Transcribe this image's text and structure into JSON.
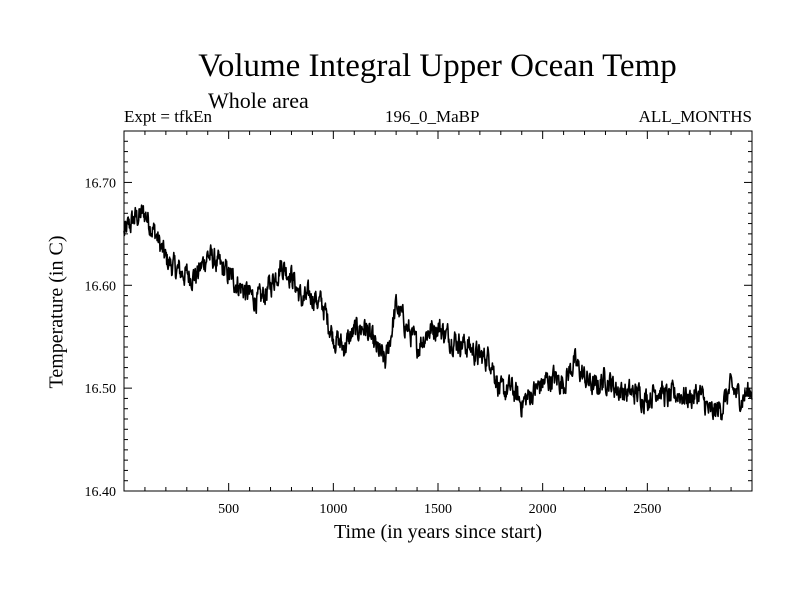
{
  "chart_data": {
    "type": "line",
    "title": "Volume Integral Upper Ocean Temp",
    "subtitle": "Whole area",
    "annotations": {
      "left": "Expt = tfkEn",
      "center": "196_0_MaBP",
      "right": "ALL_MONTHS"
    },
    "xlabel": "Time (in years since start)",
    "ylabel": "Temperature (in C)",
    "xlim": [
      0,
      3000
    ],
    "ylim": [
      16.4,
      16.75
    ],
    "xticks": [
      500,
      1000,
      1500,
      2000,
      2500
    ],
    "yticks": [
      "16.40",
      "16.50",
      "16.60",
      "16.70"
    ],
    "grid": false,
    "series": [
      {
        "x": [
          0,
          50,
          100,
          150,
          200,
          250,
          300,
          350,
          400,
          450,
          500,
          550,
          600,
          650,
          700,
          750,
          800,
          850,
          900,
          950,
          1000,
          1050,
          1100,
          1150,
          1200,
          1250,
          1300,
          1350,
          1400,
          1450,
          1500,
          1550,
          1600,
          1650,
          1700,
          1750,
          1800,
          1850,
          1900,
          1950,
          2000,
          2050,
          2100,
          2150,
          2200,
          2250,
          2300,
          2350,
          2400,
          2450,
          2500,
          2550,
          2600,
          2650,
          2700,
          2750,
          2800,
          2850,
          2900,
          2950,
          3000
        ],
        "values": [
          16.65,
          16.665,
          16.67,
          16.65,
          16.625,
          16.615,
          16.61,
          16.61,
          16.63,
          16.62,
          16.61,
          16.6,
          16.59,
          16.585,
          16.6,
          16.62,
          16.61,
          16.585,
          16.59,
          16.58,
          16.55,
          16.54,
          16.555,
          16.56,
          16.54,
          16.525,
          16.58,
          16.56,
          16.54,
          16.555,
          16.56,
          16.55,
          16.545,
          16.54,
          16.53,
          16.53,
          16.495,
          16.5,
          16.485,
          16.495,
          16.505,
          16.51,
          16.505,
          16.525,
          16.51,
          16.5,
          16.51,
          16.5,
          16.495,
          16.495,
          16.49,
          16.5,
          16.49,
          16.495,
          16.49,
          16.495,
          16.475,
          16.48,
          16.5,
          16.49,
          16.5
        ],
        "noise": 0.012
      }
    ]
  }
}
